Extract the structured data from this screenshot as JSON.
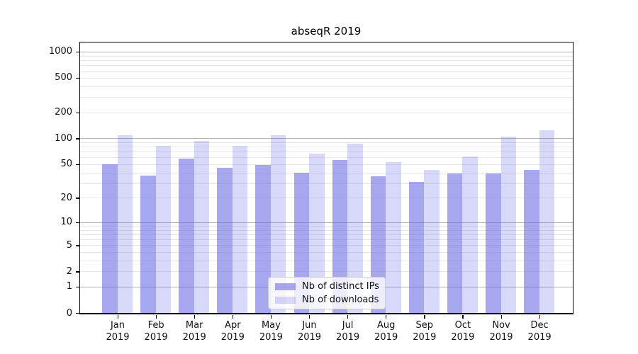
{
  "chart_data": {
    "type": "bar",
    "title": "abseqR 2019",
    "year": "2019",
    "categories": [
      "Jan",
      "Feb",
      "Mar",
      "Apr",
      "May",
      "Jun",
      "Jul",
      "Aug",
      "Sep",
      "Oct",
      "Nov",
      "Dec"
    ],
    "series": [
      {
        "name": "Nb of distinct IPs",
        "color": "rgba(100,100,228,0.57)",
        "values": [
          50,
          37,
          58,
          45,
          49,
          40,
          56,
          36,
          31,
          39,
          39,
          43
        ]
      },
      {
        "name": "Nb of downloads",
        "color": "rgba(100,100,228,0.25)",
        "values": [
          109,
          82,
          93,
          82,
          109,
          66,
          86,
          53,
          43,
          62,
          105,
          124
        ]
      }
    ],
    "y_scale": "log10(1+v)",
    "y_tick_values": [
      0,
      1,
      2,
      5,
      10,
      20,
      50,
      100,
      200,
      500,
      1000
    ],
    "y_major_gridlines": [
      1,
      10,
      100,
      1000
    ],
    "ylim": [
      0,
      1274
    ],
    "grid": true,
    "legend_position": "inside-bottom-center"
  }
}
